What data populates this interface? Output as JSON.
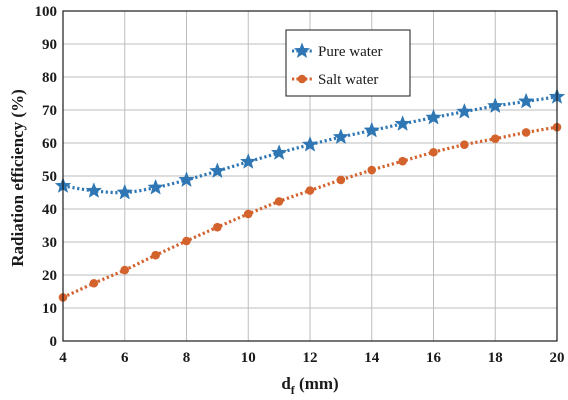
{
  "chart_data": {
    "type": "line",
    "title": "",
    "xlabel": "d",
    "xlabel_subscript": "f",
    "xlabel_unit": " (mm)",
    "ylabel": "Radiation efficiency (%)",
    "xlim": [
      4,
      20
    ],
    "ylim": [
      0,
      100
    ],
    "xticks": [
      4,
      6,
      8,
      10,
      12,
      14,
      16,
      18,
      20
    ],
    "yticks": [
      0,
      10,
      20,
      30,
      40,
      50,
      60,
      70,
      80,
      90,
      100
    ],
    "grid": true,
    "legend_position": "top-center",
    "x": [
      4,
      5,
      6,
      7,
      8,
      9,
      10,
      11,
      12,
      13,
      14,
      15,
      16,
      17,
      18,
      19,
      20
    ],
    "series": [
      {
        "name": "Pure water",
        "marker": "star",
        "color": "#2f77b4",
        "values": [
          47,
          45.5,
          45,
          46.5,
          48.8,
          51.5,
          54.3,
          57,
          59.5,
          61.8,
          63.8,
          65.8,
          67.7,
          69.5,
          71.2,
          72.6,
          74
        ]
      },
      {
        "name": "Salt water",
        "marker": "circle",
        "color": "#d4622c",
        "values": [
          13.2,
          17.5,
          21.5,
          26,
          30.3,
          34.5,
          38.5,
          42.3,
          45.6,
          48.8,
          51.8,
          54.5,
          57.2,
          59.5,
          61.3,
          63.2,
          64.8
        ]
      }
    ]
  }
}
